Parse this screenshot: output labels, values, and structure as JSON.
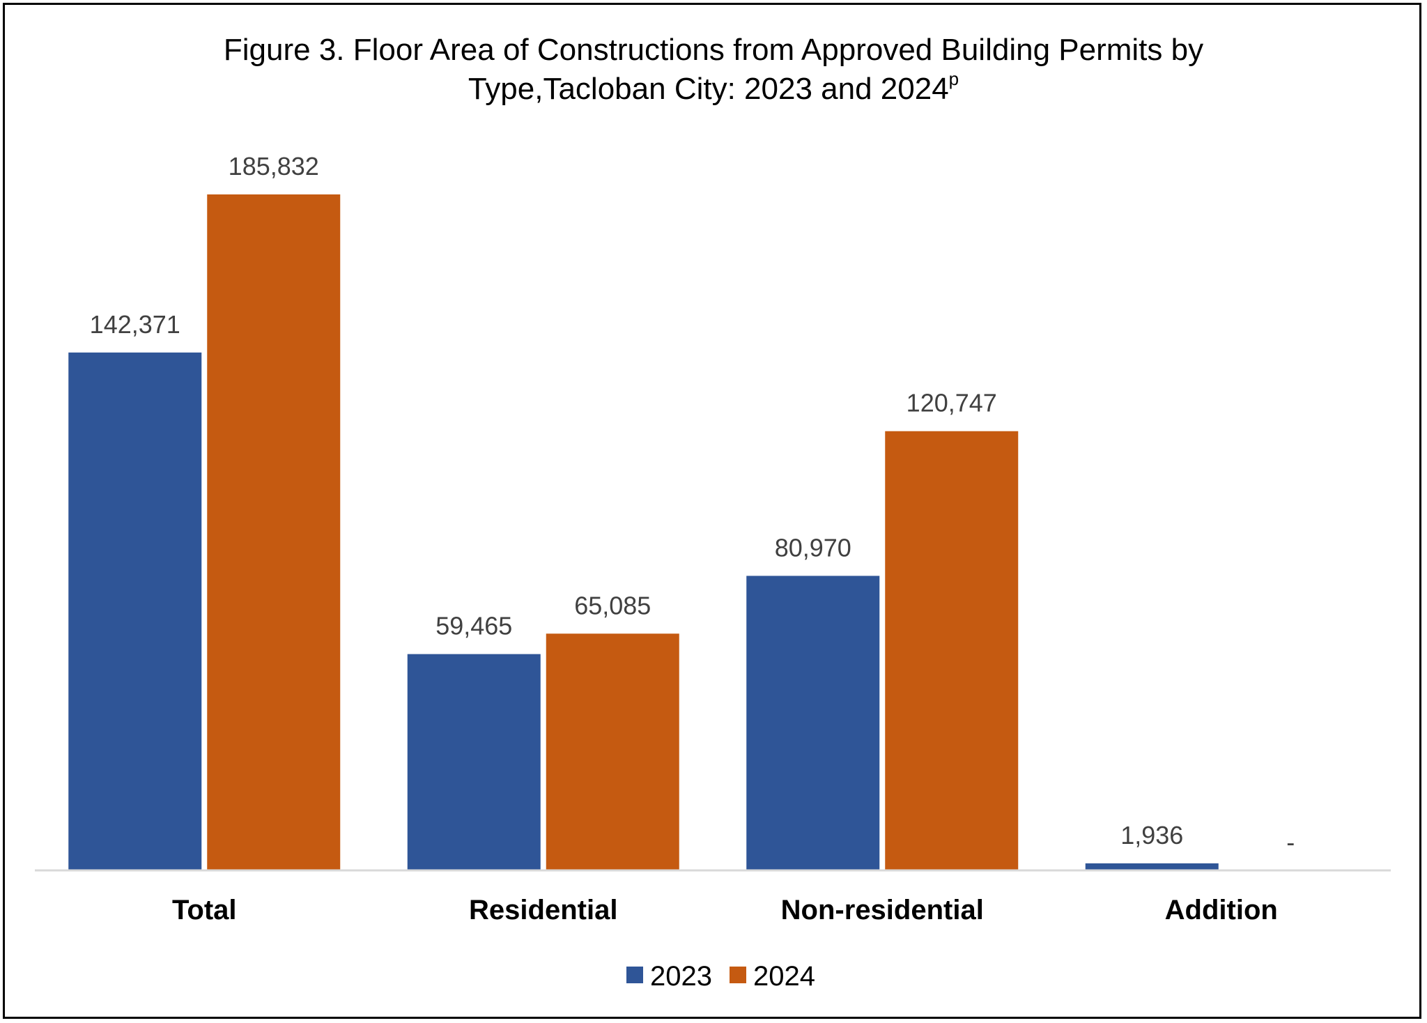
{
  "chart_data": {
    "type": "bar",
    "title_line1": "Figure 3. Floor Area of Constructions from Approved Building Permits by",
    "title_line2": "Type,Tacloban City: 2023 and 2024",
    "title_superscript": "p",
    "categories": [
      "Total",
      "Residential",
      "Non-residential",
      "Addition"
    ],
    "series": [
      {
        "name": "2023",
        "color": "#2F5597",
        "values": [
          142371,
          59465,
          80970,
          1936
        ],
        "labels": [
          "142,371",
          "59,465",
          "80,970",
          "1,936"
        ]
      },
      {
        "name": "2024",
        "color": "#C55A11",
        "values": [
          185832,
          65085,
          120747,
          0
        ],
        "labels": [
          "185,832",
          "65,085",
          "120,747",
          "-"
        ]
      }
    ],
    "ylim": [
      0,
      200000
    ],
    "grid": false,
    "legend_position": "bottom",
    "axis_line_color": "#D9D9D9"
  }
}
